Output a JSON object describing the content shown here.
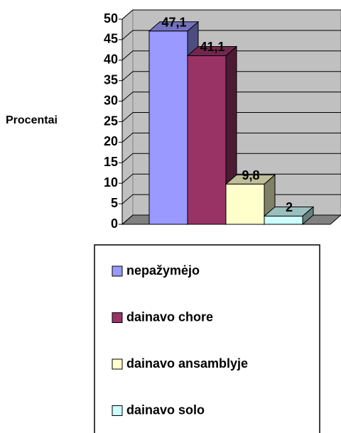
{
  "chart_data": {
    "type": "bar",
    "ylabel": "Procentai",
    "categories": [
      null
    ],
    "series": [
      {
        "name": "nepažymėjo",
        "color": "#9999ff",
        "values": [
          47.1
        ],
        "value_labels": [
          "47,1"
        ]
      },
      {
        "name": "dainavo chore",
        "color": "#993366",
        "values": [
          41.1
        ],
        "value_labels": [
          "41,1"
        ]
      },
      {
        "name": "dainavo ansamblyje",
        "color": "#ffffcc",
        "values": [
          9.8
        ],
        "value_labels": [
          "9,8"
        ]
      },
      {
        "name": "dainavo solo",
        "color": "#ccffff",
        "values": [
          2
        ],
        "value_labels": [
          "2"
        ]
      }
    ],
    "ylim": [
      0,
      50
    ],
    "yticks": [
      0,
      5,
      10,
      15,
      20,
      25,
      30,
      35,
      40,
      45,
      50
    ],
    "grid": true
  }
}
